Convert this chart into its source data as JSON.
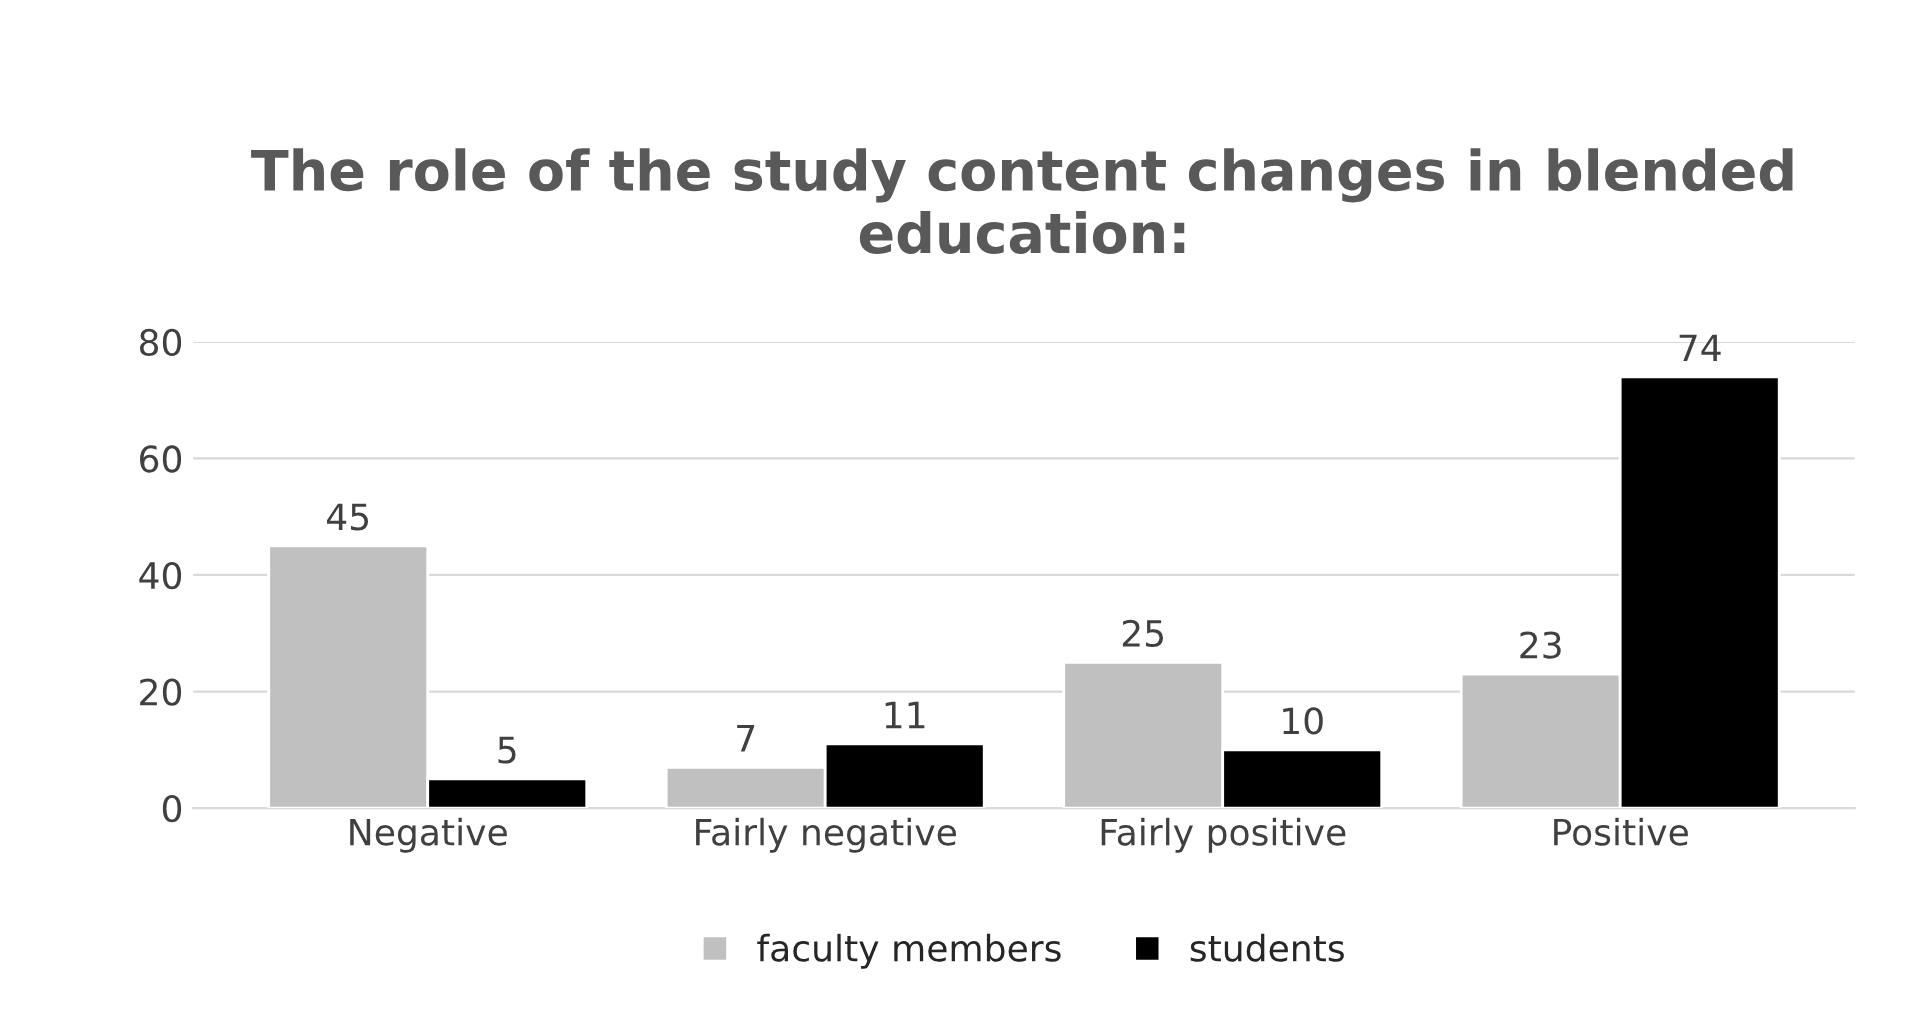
{
  "chart_data": {
    "type": "bar",
    "title": "The role of the study content changes in blended education:",
    "categories": [
      "Negative",
      "Fairly negative",
      "Fairly positive",
      "Positive"
    ],
    "series": [
      {
        "name": "faculty members",
        "color": "#c0c0c0",
        "values": [
          45,
          7,
          25,
          23
        ]
      },
      {
        "name": "students",
        "color": "#000000",
        "values": [
          5,
          11,
          10,
          74
        ]
      }
    ],
    "ylim": [
      0,
      80
    ],
    "yticks": [
      0,
      20,
      40,
      60,
      80
    ],
    "grid": "y",
    "legend": "bottom",
    "data_labels": true
  }
}
